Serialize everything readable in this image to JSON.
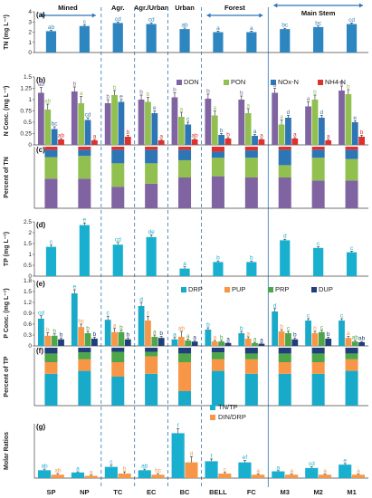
{
  "regions": [
    "Mined",
    "Agr.",
    "Agr./Urban",
    "Urban",
    "Forest",
    "Main Stem"
  ],
  "sites": [
    "SP",
    "NP",
    "TC",
    "EC",
    "BC",
    "BELL",
    "FC",
    "M3",
    "M2",
    "M1"
  ],
  "colors": {
    "DON": "#8064a2",
    "PON": "#92c050",
    "NOx-N": "#2e75b6",
    "NH4-N": "#e0302c",
    "DRP": "#19a9c9",
    "PUP": "#f79646",
    "PRP": "#4ea64a",
    "DUP": "#1f3e7a",
    "TN": "#2e86c1",
    "TP": "#19b0d0",
    "TN/TP": "#19b0d0",
    "DIN/DRP": "#f79646"
  },
  "chart_data": [
    {
      "panel": "(a)",
      "type": "bar",
      "ylabel": "TN (mg L⁻¹)",
      "ylim": [
        0,
        4
      ],
      "yticks": [
        0,
        1,
        2,
        3,
        4
      ],
      "series": [
        {
          "name": "TN",
          "values": [
            2.1,
            2.6,
            2.9,
            2.8,
            2.3,
            2.0,
            2.0,
            2.3,
            2.5,
            2.8
          ],
          "errors": [
            0.1,
            0.12,
            0.1,
            0.12,
            0.1,
            0.1,
            0.1,
            0.08,
            0.1,
            0.1
          ]
        }
      ],
      "letters": [
        [
          "ab"
        ],
        [
          "c"
        ],
        [
          "cd"
        ],
        [
          "cd"
        ],
        [
          "ab"
        ],
        [
          "a"
        ],
        [
          "a"
        ],
        [
          "bc"
        ],
        [
          "bc"
        ],
        [
          "cd"
        ]
      ]
    },
    {
      "panel": "(b)",
      "type": "bar",
      "ylabel": "N Conc. (mg L⁻¹)",
      "ylim": [
        0,
        1.5
      ],
      "yticks": [
        0,
        0.25,
        0.5,
        0.75,
        1,
        1.25,
        1.5
      ],
      "series": [
        {
          "name": "DON",
          "values": [
            1.15,
            1.18,
            0.92,
            1.0,
            1.05,
            1.02,
            1.0,
            1.15,
            0.85,
            1.2
          ],
          "errors": [
            0.12,
            0.1,
            0.08,
            0.1,
            0.1,
            0.1,
            0.08,
            0.1,
            0.1,
            0.1
          ]
        },
        {
          "name": "PON",
          "values": [
            0.78,
            0.92,
            1.1,
            0.95,
            0.62,
            0.65,
            0.7,
            0.45,
            1.0,
            1.12
          ],
          "errors": [
            0.12,
            0.15,
            0.1,
            0.1,
            0.1,
            0.1,
            0.1,
            0.1,
            0.1,
            0.1
          ]
        },
        {
          "name": "NOx-N",
          "values": [
            0.35,
            0.55,
            0.95,
            0.7,
            0.45,
            0.22,
            0.2,
            0.6,
            0.6,
            0.5
          ],
          "errors": [
            0.05,
            0.05,
            0.05,
            0.05,
            0.05,
            0.03,
            0.03,
            0.05,
            0.05,
            0.03
          ]
        },
        {
          "name": "NH4-N",
          "values": [
            0.12,
            0.1,
            0.18,
            0.1,
            0.12,
            0.14,
            0.12,
            0.14,
            0.1,
            0.18
          ],
          "errors": [
            0.02,
            0.02,
            0.03,
            0.02,
            0.02,
            0.02,
            0.02,
            0.02,
            0.02,
            0.03
          ]
        }
      ],
      "letters": [
        [
          "ab",
          "ab",
          "bc",
          "ab"
        ],
        [
          "b",
          "a",
          "cd",
          "a"
        ],
        [
          "b",
          "b",
          "e",
          "b"
        ],
        [
          "b",
          "b",
          "e",
          "a"
        ],
        [
          "b",
          "a",
          "c",
          "ab"
        ],
        [
          "b",
          "a",
          "b",
          "b"
        ],
        [
          "b",
          "a",
          "a",
          "a"
        ],
        [
          "b",
          "a",
          "d",
          "a"
        ],
        [
          "a",
          "b",
          "d",
          "a"
        ],
        [
          "b",
          "b",
          "e",
          "b"
        ]
      ]
    },
    {
      "panel": "(c)",
      "type": "bar",
      "ylabel": "Percent of TN",
      "ylim": [
        0,
        100
      ],
      "stacked": true,
      "series": [
        {
          "name": "DON",
          "values": [
            48,
            48,
            35,
            40,
            50,
            52,
            50,
            50,
            45,
            45
          ]
        },
        {
          "name": "PON",
          "values": [
            35,
            37,
            38,
            33,
            28,
            30,
            32,
            20,
            37,
            35
          ]
        },
        {
          "name": "NOx-N",
          "values": [
            12,
            10,
            22,
            22,
            17,
            10,
            12,
            25,
            13,
            15
          ]
        },
        {
          "name": "NH4-N",
          "values": [
            5,
            5,
            5,
            5,
            5,
            8,
            6,
            5,
            5,
            5
          ]
        }
      ]
    },
    {
      "panel": "(d)",
      "type": "bar",
      "ylabel": "TP (mg L⁻¹)",
      "ylim": [
        0,
        2.5
      ],
      "yticks": [
        0,
        0.5,
        1,
        1.5,
        2,
        2.5
      ],
      "series": [
        {
          "name": "TP",
          "values": [
            1.35,
            2.35,
            1.45,
            1.8,
            0.35,
            0.65,
            0.65,
            1.65,
            1.3,
            1.1
          ],
          "errors": [
            0.08,
            0.1,
            0.1,
            0.1,
            0.08,
            0.05,
            0.05,
            0.05,
            0.05,
            0.05
          ]
        }
      ],
      "letters": [
        [
          "c"
        ],
        [
          "e"
        ],
        [
          "cd"
        ],
        [
          "de"
        ],
        [
          "a"
        ],
        [
          "b"
        ],
        [
          "b"
        ],
        [
          "d"
        ],
        [
          "c"
        ],
        [
          "c"
        ]
      ]
    },
    {
      "panel": "(e)",
      "type": "bar",
      "ylabel": "P Conc. (mg L⁻¹)",
      "ylim": [
        0,
        1.8
      ],
      "yticks": [
        0,
        0.3,
        0.6,
        0.9,
        1.2,
        1.5,
        1.8
      ],
      "series": [
        {
          "name": "DRP",
          "values": [
            0.75,
            1.45,
            0.72,
            1.1,
            0.18,
            0.45,
            0.35,
            0.95,
            0.7,
            0.7
          ],
          "errors": [
            0.08,
            0.1,
            0.1,
            0.1,
            0.05,
            0.05,
            0.05,
            0.08,
            0.05,
            0.05
          ]
        },
        {
          "name": "PUP",
          "values": [
            0.28,
            0.52,
            0.38,
            0.7,
            0.25,
            0.12,
            0.2,
            0.4,
            0.35,
            0.22
          ],
          "errors": [
            0.08,
            0.08,
            0.1,
            0.12,
            0.15,
            0.03,
            0.05,
            0.05,
            0.05,
            0.04
          ]
        },
        {
          "name": "PRP",
          "values": [
            0.28,
            0.35,
            0.38,
            0.25,
            0.15,
            0.12,
            0.08,
            0.35,
            0.38,
            0.12
          ],
          "errors": [
            0.05,
            0.05,
            0.05,
            0.05,
            0.04,
            0.03,
            0.02,
            0.05,
            0.05,
            0.03
          ]
        },
        {
          "name": "DUP",
          "values": [
            0.18,
            0.2,
            0.18,
            0.22,
            0.12,
            0.08,
            0.06,
            0.18,
            0.2,
            0.1
          ],
          "errors": [
            0.04,
            0.04,
            0.04,
            0.04,
            0.03,
            0.02,
            0.02,
            0.04,
            0.04,
            0.02
          ]
        }
      ],
      "letters": [
        [
          "cd",
          "b",
          "b",
          "b"
        ],
        [
          "e",
          "bc",
          "b",
          "b"
        ],
        [
          "c",
          "a",
          "b",
          "b"
        ],
        [
          "d",
          "c",
          "a",
          "b"
        ],
        [
          "a",
          "ab",
          "a",
          "a"
        ],
        [
          "b",
          "a",
          "b",
          "a"
        ],
        [
          "b",
          "a",
          "a",
          "a"
        ],
        [
          "d",
          "b",
          "c",
          "b"
        ],
        [
          "c",
          "b",
          "c",
          "b"
        ],
        [
          "c",
          "a",
          "ab",
          "ab"
        ]
      ]
    },
    {
      "panel": "(f)",
      "type": "bar",
      "ylabel": "Percent of TP",
      "ylim": [
        0,
        100
      ],
      "stacked": true,
      "series": [
        {
          "name": "DRP",
          "values": [
            55,
            60,
            50,
            55,
            25,
            60,
            55,
            55,
            55,
            60
          ]
        },
        {
          "name": "PUP",
          "values": [
            20,
            20,
            25,
            30,
            50,
            20,
            25,
            20,
            20,
            20
          ]
        },
        {
          "name": "PRP",
          "values": [
            15,
            12,
            18,
            8,
            15,
            12,
            10,
            15,
            15,
            10
          ]
        },
        {
          "name": "DUP",
          "values": [
            10,
            8,
            7,
            7,
            10,
            8,
            10,
            10,
            10,
            10
          ]
        }
      ]
    },
    {
      "panel": "(g)",
      "type": "bar",
      "ylabel": "Molar Ratios",
      "series": [
        {
          "name": "TN/TP",
          "values": [
            3.5,
            2.5,
            5,
            3.5,
            20,
            7.5,
            7,
            3,
            4.5,
            6
          ],
          "errors": [
            0.5,
            0.3,
            0.8,
            0.5,
            2,
            1,
            0.8,
            0.3,
            0.5,
            0.5
          ]
        },
        {
          "name": "DIN/DRP",
          "values": [
            1.5,
            1,
            2,
            1.5,
            7,
            2,
            1.5,
            1.5,
            1.5,
            1.5
          ],
          "errors": [
            0.5,
            0.3,
            0.8,
            0.5,
            2.5,
            0.5,
            0.4,
            0.3,
            0.3,
            0.3
          ]
        }
      ],
      "letters": [
        [
          "ab",
          "ab"
        ],
        [
          "a",
          "a"
        ],
        [
          "c",
          "b"
        ],
        [
          "ab",
          "bc"
        ],
        [
          "f",
          "d"
        ],
        [
          "f",
          "c"
        ],
        [
          "ef",
          "a"
        ],
        [
          "a",
          "a"
        ],
        [
          "cd",
          "a"
        ],
        [
          "e",
          "a"
        ]
      ]
    }
  ]
}
